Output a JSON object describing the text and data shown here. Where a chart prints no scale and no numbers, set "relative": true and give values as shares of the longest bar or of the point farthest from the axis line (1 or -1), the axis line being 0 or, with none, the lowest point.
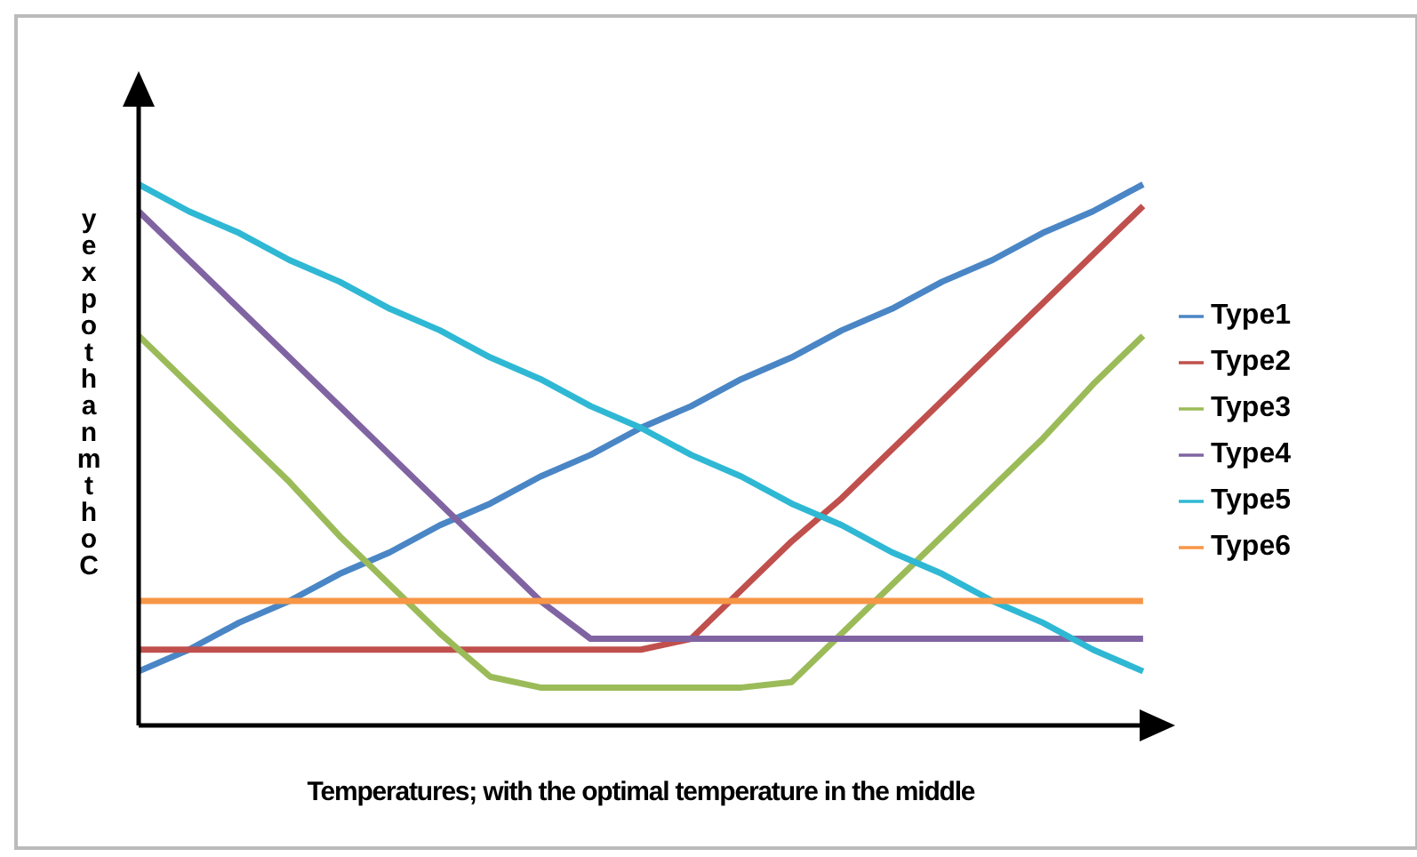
{
  "chart_data": {
    "type": "line",
    "relative": true,
    "xlabel": "Temperatures; with the optimal temperature in the middle",
    "ylabel": "yexpothanmthoC",
    "categories": [
      null,
      null,
      null,
      null,
      null,
      null,
      null,
      null,
      null,
      null,
      null,
      null,
      null,
      null,
      null,
      null,
      null,
      null,
      null,
      null,
      null
    ],
    "legend": "right",
    "marker": "none",
    "line_style": "solid",
    "grid": false,
    "series": [
      {
        "name": "Type1",
        "color": "#4a86c5",
        "values": [
          0.1,
          0.14,
          0.19,
          0.23,
          0.28,
          0.32,
          0.37,
          0.41,
          0.46,
          0.5,
          0.55,
          0.59,
          0.64,
          0.68,
          0.73,
          0.77,
          0.82,
          0.86,
          0.91,
          0.95,
          1.0
        ]
      },
      {
        "name": "Type2",
        "color": "#c0504d",
        "values": [
          0.14,
          0.14,
          0.14,
          0.14,
          0.14,
          0.14,
          0.14,
          0.14,
          0.14,
          0.14,
          0.14,
          0.16,
          0.25,
          0.34,
          0.42,
          0.51,
          0.6,
          0.69,
          0.78,
          0.87,
          0.96
        ]
      },
      {
        "name": "Type3",
        "color": "#9bbb59",
        "values": [
          0.72,
          0.63,
          0.54,
          0.45,
          0.35,
          0.26,
          0.17,
          0.09,
          0.07,
          0.07,
          0.07,
          0.07,
          0.07,
          0.08,
          0.17,
          0.26,
          0.35,
          0.44,
          0.53,
          0.63,
          0.72
        ]
      },
      {
        "name": "Type4",
        "color": "#8064a2",
        "values": [
          0.95,
          0.86,
          0.77,
          0.68,
          0.59,
          0.5,
          0.41,
          0.32,
          0.23,
          0.16,
          0.16,
          0.16,
          0.16,
          0.16,
          0.16,
          0.16,
          0.16,
          0.16,
          0.16,
          0.16,
          0.16
        ]
      },
      {
        "name": "Type5",
        "color": "#2fb8d4",
        "values": [
          1.0,
          0.95,
          0.91,
          0.86,
          0.82,
          0.77,
          0.73,
          0.68,
          0.64,
          0.59,
          0.55,
          0.5,
          0.46,
          0.41,
          0.37,
          0.32,
          0.28,
          0.23,
          0.19,
          0.14,
          0.1
        ]
      },
      {
        "name": "Type6",
        "color": "#f79646",
        "values": [
          0.23,
          0.23,
          0.23,
          0.23,
          0.23,
          0.23,
          0.23,
          0.23,
          0.23,
          0.23,
          0.23,
          0.23,
          0.23,
          0.23,
          0.23,
          0.23,
          0.23,
          0.23,
          0.23,
          0.23,
          0.23
        ]
      }
    ]
  }
}
